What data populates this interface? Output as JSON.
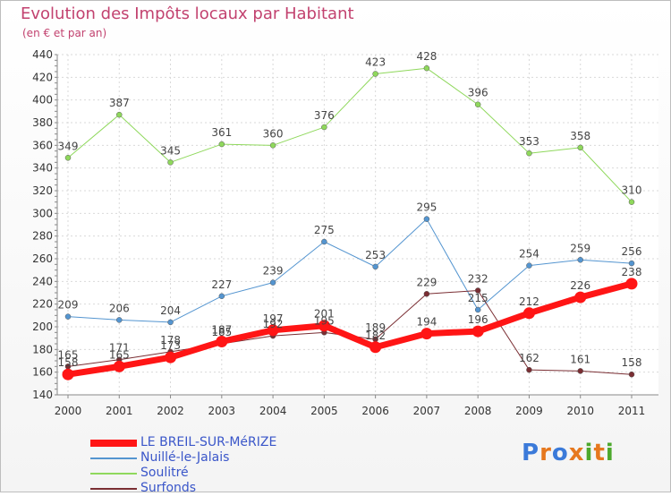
{
  "header": {
    "title": "Evolution des Impôts locaux par Habitant",
    "subtitle": "(en € et par an)"
  },
  "logo": {
    "text": "Proxiti",
    "colors": [
      "#3b7ad9",
      "#e6781e",
      "#3b7ad9",
      "#e6781e",
      "#4da82c",
      "#e6781e",
      "#4da82c"
    ]
  },
  "chart_data": {
    "type": "line",
    "x": [
      "2000",
      "2001",
      "2002",
      "2003",
      "2004",
      "2005",
      "2006",
      "2007",
      "2008",
      "2009",
      "2010",
      "2011"
    ],
    "ylim": [
      140,
      440
    ],
    "yticks": [
      140,
      160,
      180,
      200,
      220,
      240,
      260,
      280,
      300,
      320,
      340,
      360,
      380,
      400,
      420,
      440
    ],
    "grid": true,
    "legend_position": "bottom-left",
    "series": [
      {
        "name": "LE BREIL-SUR-MéRIZE",
        "color": "#ff1515",
        "width": 7,
        "values": [
          158,
          165,
          173,
          187,
          197,
          201,
          182,
          194,
          196,
          212,
          226,
          238
        ]
      },
      {
        "name": "Nuillé-le-Jalais",
        "color": "#5495d0",
        "width": 1,
        "values": [
          209,
          206,
          204,
          227,
          239,
          275,
          253,
          295,
          215,
          254,
          259,
          256
        ]
      },
      {
        "name": "Soulitré",
        "color": "#8fd85c",
        "width": 1,
        "values": [
          349,
          387,
          345,
          361,
          360,
          376,
          423,
          428,
          396,
          353,
          358,
          310
        ]
      },
      {
        "name": "Surfonds",
        "color": "#7a2e33",
        "width": 1,
        "values": [
          165,
          171,
          178,
          185,
          192,
          195,
          189,
          229,
          232,
          162,
          161,
          158
        ]
      }
    ]
  }
}
